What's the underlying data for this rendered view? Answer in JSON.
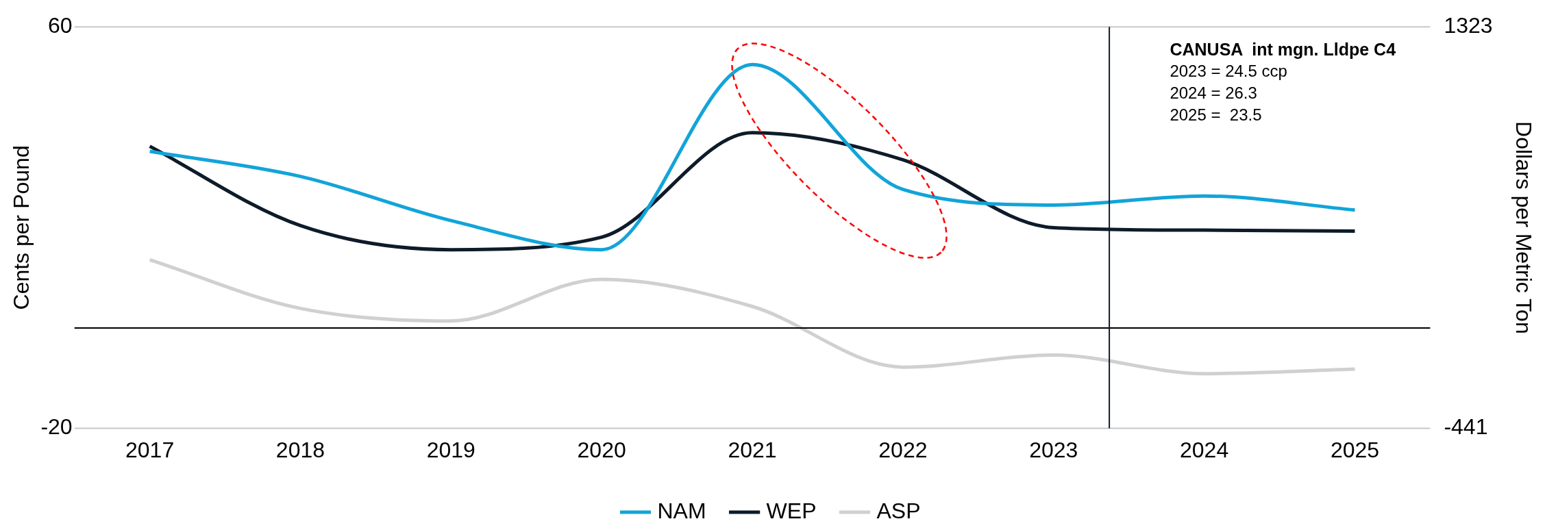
{
  "chart_data": {
    "type": "line",
    "x": [
      2017,
      2018,
      2019,
      2020,
      2021,
      2022,
      2023,
      2024,
      2025
    ],
    "xlim": [
      2016.5,
      2025.5
    ],
    "xticks": [
      2017,
      2018,
      2019,
      2020,
      2021,
      2022,
      2023,
      2024,
      2025
    ],
    "ylim": [
      -20,
      60
    ],
    "yticks": [
      -20,
      60
    ],
    "y2lim": [
      -441,
      1323
    ],
    "y2ticks": [
      -441,
      1323
    ],
    "ylabel": "Cents per Pound",
    "y2label": "Dollars per Metric Ton",
    "series": [
      {
        "name": "NAM",
        "color": "#12a4d9",
        "values": [
          35.2,
          30.2,
          21.4,
          15.6,
          52.5,
          27.6,
          24.5,
          26.3,
          23.5
        ]
      },
      {
        "name": "WEP",
        "color": "#0d1b2a",
        "values": [
          36.2,
          20.4,
          15.6,
          18.1,
          38.9,
          33.5,
          20.0,
          19.5,
          19.3
        ]
      },
      {
        "name": "ASP",
        "color": "#d0d0d0",
        "values": [
          13.6,
          3.9,
          1.4,
          9.7,
          4.3,
          -7.8,
          -5.4,
          -9.1,
          -8.2
        ]
      }
    ],
    "ref_lines": [
      {
        "axis": "y",
        "value": 0,
        "color": "#000000"
      },
      {
        "axis": "x",
        "value": 2023.37,
        "color": "#0d1b2a"
      }
    ],
    "annotations": [
      "CANUSA  int mgn. Lldpe C4",
      "2023 = 24.5 ccp",
      "2024 = 26.3",
      "2025 =  23.5"
    ],
    "legend": "bottom",
    "marker": "none",
    "line_style": "solid"
  }
}
